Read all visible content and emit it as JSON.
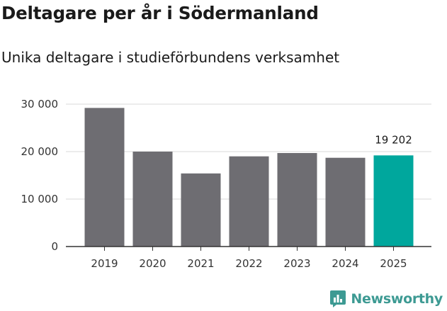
{
  "title": "Deltagare per år i Södermanland",
  "subtitle": "Unika deltagare i studieförbundens verksamhet",
  "brand": {
    "name": "Newsworthy",
    "color": "#3d9a93"
  },
  "colors": {
    "bar": "#6e6d72",
    "highlight": "#00a79d",
    "grid": "#d9d9d9",
    "axis": "#333333"
  },
  "chart_data": {
    "type": "bar",
    "title": "Deltagare per år i Södermanland",
    "subtitle": "Unika deltagare i studieförbundens verksamhet",
    "xlabel": "",
    "ylabel": "",
    "categories": [
      "2019",
      "2020",
      "2021",
      "2022",
      "2023",
      "2024",
      "2025"
    ],
    "values": [
      29200,
      20000,
      15400,
      19000,
      19700,
      18700,
      19202
    ],
    "highlight_index": 6,
    "data_labels": [
      {
        "index": 6,
        "text": "19 202"
      }
    ],
    "ylim": [
      0,
      30000
    ],
    "yticks": [
      0,
      10000,
      20000,
      30000
    ],
    "ytick_labels": [
      "0",
      "10 000",
      "20 000",
      "30 000"
    ],
    "grid": true
  }
}
